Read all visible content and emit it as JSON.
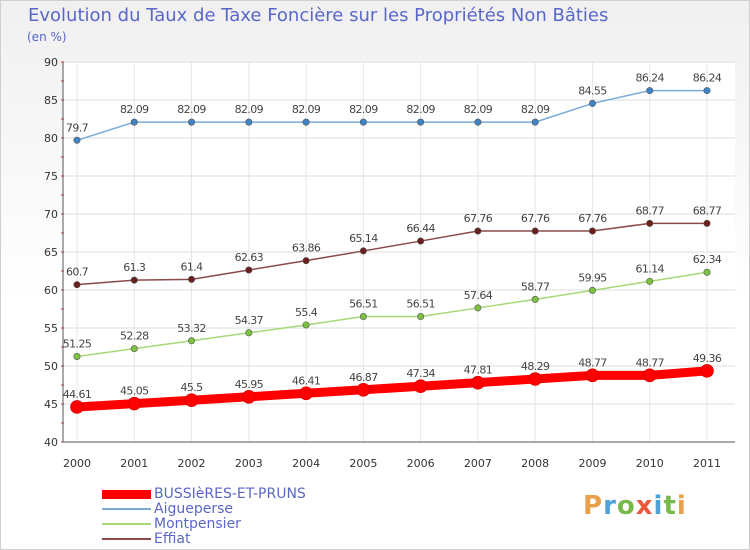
{
  "title": "Evolution du Taux de Taxe Foncière sur les Propriétés Non Bâties",
  "unit": "(en %)",
  "logo": {
    "text": "Proxiti",
    "colors": [
      "#e8a14a",
      "#4da3d8",
      "#79b84a",
      "#e85a3a",
      "#4da3d8",
      "#79b84a",
      "#e8a14a"
    ]
  },
  "chart_data": {
    "type": "line",
    "x": [
      "2000",
      "2001",
      "2002",
      "2003",
      "2004",
      "2005",
      "2006",
      "2007",
      "2008",
      "2009",
      "2010",
      "2011"
    ],
    "ylim": [
      40,
      90
    ],
    "yticks": [
      "40",
      "45",
      "50",
      "55",
      "60",
      "65",
      "70",
      "75",
      "80",
      "85",
      "90"
    ],
    "grid": true,
    "legend_position": "bottom-left",
    "series": [
      {
        "name": "BUSSIèRES-ET-PRUNS",
        "color": "#ff0000",
        "point_color": "#ff0000",
        "width": 9,
        "values": [
          44.61,
          45.05,
          45.5,
          45.95,
          46.41,
          46.87,
          47.34,
          47.81,
          48.29,
          48.77,
          48.77,
          49.36
        ],
        "labels": [
          "44.61",
          "45.05",
          "45.5",
          "45.95",
          "46.41",
          "46.87",
          "47.34",
          "47.81",
          "48.29",
          "48.77",
          "48.77",
          "49.36"
        ]
      },
      {
        "name": "Aigueperse",
        "color": "#7aaad8",
        "point_color": "#3f84c6",
        "width": 1.5,
        "values": [
          79.7,
          82.09,
          82.09,
          82.09,
          82.09,
          82.09,
          82.09,
          82.09,
          82.09,
          84.55,
          86.24,
          86.24
        ],
        "labels": [
          "79.7",
          "82.09",
          "82.09",
          "82.09",
          "82.09",
          "82.09",
          "82.09",
          "82.09",
          "82.09",
          "84.55",
          "86.24",
          "86.24"
        ]
      },
      {
        "name": "Montpensier",
        "color": "#a8d878",
        "point_color": "#7cc240",
        "width": 1.5,
        "values": [
          51.25,
          52.28,
          53.32,
          54.37,
          55.4,
          56.51,
          56.51,
          57.64,
          58.77,
          59.95,
          61.14,
          62.34
        ],
        "labels": [
          "51.25",
          "52.28",
          "53.32",
          "54.37",
          "55.4",
          "56.51",
          "56.51",
          "57.64",
          "58.77",
          "59.95",
          "61.14",
          "62.34"
        ]
      },
      {
        "name": "Effiat",
        "color": "#8b4a4a",
        "point_color": "#6b1e1e",
        "width": 1.5,
        "values": [
          60.7,
          61.3,
          61.4,
          62.63,
          63.86,
          65.14,
          66.44,
          67.76,
          67.76,
          67.76,
          68.77,
          68.77
        ],
        "labels": [
          "60.7",
          "61.3",
          "61.4",
          "62.63",
          "63.86",
          "65.14",
          "66.44",
          "67.76",
          "67.76",
          "67.76",
          "68.77",
          "68.77"
        ]
      }
    ]
  }
}
